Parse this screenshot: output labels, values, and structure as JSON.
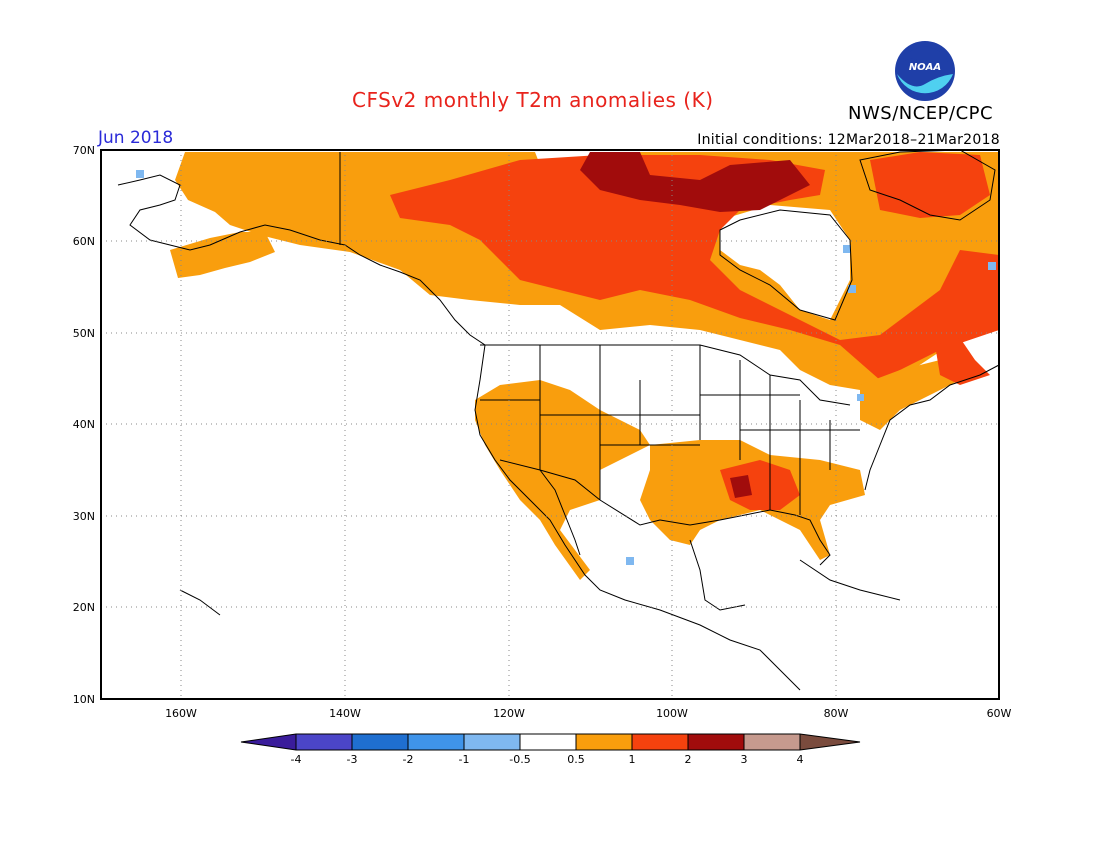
{
  "title": "CFSv2 monthly T2m anomalies (K)",
  "month": "Jun 2018",
  "initial_conditions": "Initial conditions: 12Mar2018–21Mar2018",
  "agency": "NWS/NCEP/CPC",
  "logo_text": "NOAA",
  "colors": {
    "title": "#e8231c",
    "month": "#2a2ad8",
    "c_m4": "#3a1c9b",
    "c_m3": "#4b45c8",
    "c_m2": "#1f6fd0",
    "c_m1": "#3f94ea",
    "c_m05": "#7fb8f0",
    "c_0": "#ffffff",
    "c_05": "#f99e0d",
    "c_1": "#f5420e",
    "c_2": "#a10c0c",
    "c_3": "#c69a8e",
    "c_4": "#7a4b3d"
  },
  "map": {
    "lat_range": [
      10,
      70
    ],
    "lon_range": [
      -170,
      -60
    ],
    "lat_labels": [
      "70N",
      "60N",
      "50N",
      "40N",
      "30N",
      "20N",
      "10N"
    ],
    "lon_labels": [
      "160W",
      "140W",
      "120W",
      "100W",
      "80W",
      "60W"
    ]
  },
  "colorbar": {
    "labels": [
      "-4",
      "-3",
      "-2",
      "-1",
      "-0.5",
      "0.5",
      "1",
      "2",
      "3",
      "4"
    ]
  }
}
